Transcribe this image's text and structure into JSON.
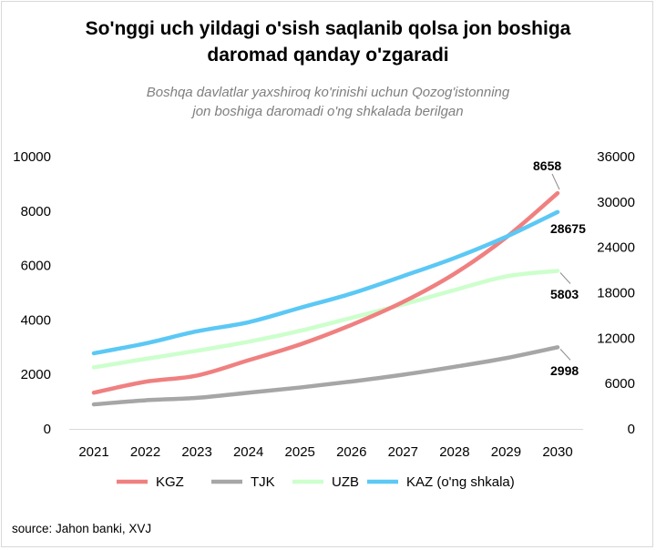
{
  "title_line1": "So'nggi uch yildagi o'sish saqlanib qolsa jon boshiga",
  "title_line2": "daromad qanday o'zgaradi",
  "subtitle_line1": "Boshqa davlatlar  yaxshiroq ko'rinishi uchun Qozog'istonning",
  "subtitle_line2": "jon boshiga daromadi o'ng shkalada berilgan",
  "source": "source: Jahon banki, XVJ",
  "chart_data": {
    "type": "line",
    "title": "So'nggi uch yildagi o'sish saqlanib qolsa jon boshiga daromad qanday o'zgaradi",
    "subtitle": "Boshqa davlatlar  yaxshiroq ko'rinishi uchun Qozog'istonning jon boshiga daromadi o'ng shkalada berilgan",
    "categories": [
      "2021",
      "2022",
      "2023",
      "2024",
      "2025",
      "2026",
      "2027",
      "2028",
      "2029",
      "2030"
    ],
    "y_left": {
      "min": 0,
      "max": 10000,
      "ticks": [
        0,
        2000,
        4000,
        6000,
        8000,
        10000
      ]
    },
    "y_right": {
      "min": 0,
      "max": 36000,
      "ticks": [
        0,
        6000,
        12000,
        18000,
        24000,
        30000,
        36000
      ]
    },
    "grid": false,
    "legend_position": "bottom",
    "series": [
      {
        "name": "KGZ",
        "axis": "left",
        "color": "#f08080",
        "values": [
          1330,
          1730,
          1960,
          2520,
          3100,
          3820,
          4660,
          5700,
          7030,
          8658
        ],
        "end_label": "8658"
      },
      {
        "name": "TJK",
        "axis": "left",
        "color": "#a6a6a6",
        "values": [
          900,
          1050,
          1140,
          1330,
          1520,
          1740,
          1990,
          2280,
          2600,
          2998
        ],
        "end_label": "2998"
      },
      {
        "name": "UZB",
        "axis": "left",
        "color": "#ccffcc",
        "values": [
          2260,
          2570,
          2870,
          3200,
          3600,
          4080,
          4570,
          5100,
          5600,
          5803
        ],
        "end_label": "5803"
      },
      {
        "name": "KAZ (o'ng shkala)",
        "axis": "right",
        "color": "#5bc8f5",
        "values": [
          10000,
          11300,
          12900,
          14100,
          16000,
          17900,
          20200,
          22600,
          25400,
          28675
        ],
        "end_label": "28675"
      }
    ]
  }
}
